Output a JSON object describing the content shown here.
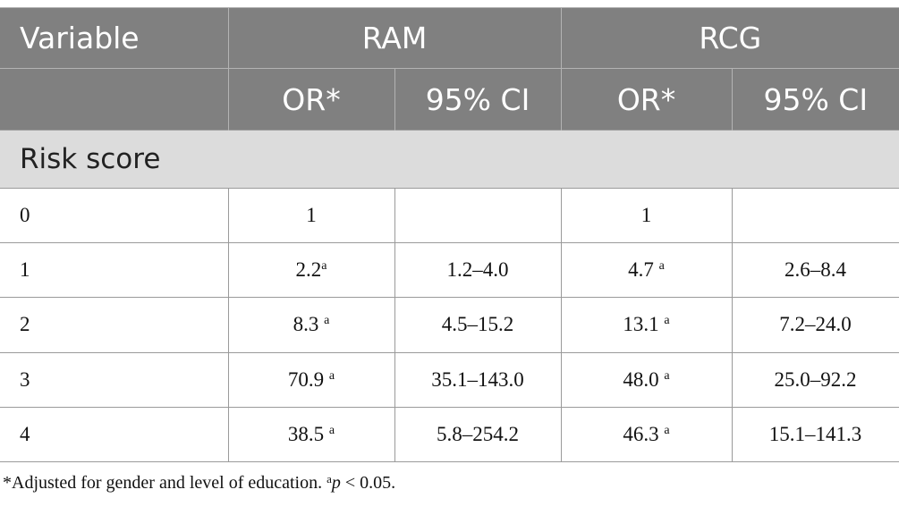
{
  "header": {
    "variable": "Variable",
    "group1": "RAM",
    "group2": "RCG",
    "or_label": "OR*",
    "ci_label": "95% CI"
  },
  "section_label": "Risk score",
  "rows": [
    {
      "score": "0",
      "ram_or": "1",
      "ram_sig": "",
      "ram_ci": "",
      "rcg_or": "1",
      "rcg_sig": "",
      "rcg_ci": ""
    },
    {
      "score": "1",
      "ram_or": "2.2",
      "ram_sig": "a",
      "ram_ci": "1.2–4.0",
      "rcg_or": "4.7 ",
      "rcg_sig": "a",
      "rcg_ci": "2.6–8.4"
    },
    {
      "score": "2",
      "ram_or": "8.3 ",
      "ram_sig": "a",
      "ram_ci": "4.5–15.2",
      "rcg_or": "13.1 ",
      "rcg_sig": "a",
      "rcg_ci": "7.2–24.0"
    },
    {
      "score": "3",
      "ram_or": "70.9 ",
      "ram_sig": "a",
      "ram_ci": "35.1–143.0",
      "rcg_or": "48.0 ",
      "rcg_sig": "a",
      "rcg_ci": "25.0–92.2"
    },
    {
      "score": "4",
      "ram_or": "38.5 ",
      "ram_sig": "a",
      "ram_ci": "5.8–254.2",
      "rcg_or": "46.3 ",
      "rcg_sig": "a",
      "rcg_ci": "15.1–141.3"
    }
  ],
  "footnote": {
    "adjusted": "*Adjusted for gender and level of education. ",
    "sig_mark": "a",
    "p_symbol": "p",
    "p_text": " < 0.05."
  }
}
